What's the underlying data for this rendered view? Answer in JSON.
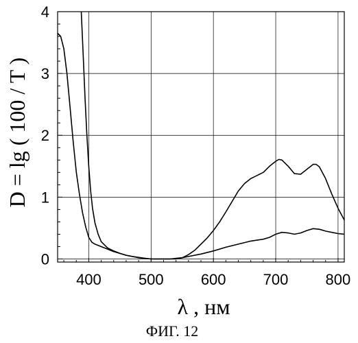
{
  "chart_data": {
    "type": "line",
    "xlabel": "λ , нм",
    "ylabel": "D = lg ( 100 / T )",
    "caption": "ФИГ. 12",
    "xlim": [
      350,
      810
    ],
    "ylim": [
      -0.05,
      4
    ],
    "xticks": [
      400,
      500,
      600,
      700,
      800
    ],
    "yticks": [
      0,
      1,
      2,
      3,
      4
    ],
    "grid": true,
    "series": [
      {
        "points": [
          [
            350,
            3.65
          ],
          [
            355,
            3.6
          ],
          [
            360,
            3.4
          ],
          [
            365,
            3.0
          ],
          [
            370,
            2.45
          ],
          [
            375,
            1.9
          ],
          [
            380,
            1.4
          ],
          [
            385,
            1.05
          ],
          [
            390,
            0.75
          ],
          [
            395,
            0.52
          ],
          [
            400,
            0.35
          ],
          [
            405,
            0.27
          ],
          [
            410,
            0.24
          ],
          [
            420,
            0.2
          ],
          [
            430,
            0.16
          ],
          [
            440,
            0.12
          ],
          [
            450,
            0.09
          ],
          [
            460,
            0.06
          ],
          [
            470,
            0.04
          ],
          [
            480,
            0.025
          ],
          [
            490,
            0.01
          ],
          [
            500,
            0.0
          ],
          [
            510,
            0.0
          ],
          [
            520,
            0.0
          ],
          [
            530,
            0.0
          ],
          [
            540,
            0.01
          ],
          [
            550,
            0.02
          ],
          [
            560,
            0.04
          ],
          [
            580,
            0.08
          ],
          [
            600,
            0.13
          ],
          [
            620,
            0.19
          ],
          [
            640,
            0.24
          ],
          [
            660,
            0.29
          ],
          [
            680,
            0.32
          ],
          [
            690,
            0.35
          ],
          [
            700,
            0.4
          ],
          [
            710,
            0.43
          ],
          [
            720,
            0.42
          ],
          [
            730,
            0.4
          ],
          [
            740,
            0.42
          ],
          [
            750,
            0.46
          ],
          [
            760,
            0.49
          ],
          [
            770,
            0.48
          ],
          [
            780,
            0.45
          ],
          [
            790,
            0.43
          ],
          [
            800,
            0.41
          ],
          [
            810,
            0.4
          ]
        ]
      },
      {
        "points": [
          [
            388,
            4.0
          ],
          [
            391,
            3.3
          ],
          [
            394,
            2.6
          ],
          [
            397,
            2.0
          ],
          [
            400,
            1.5
          ],
          [
            403,
            1.1
          ],
          [
            406,
            0.82
          ],
          [
            410,
            0.58
          ],
          [
            415,
            0.4
          ],
          [
            420,
            0.28
          ],
          [
            430,
            0.18
          ],
          [
            440,
            0.13
          ],
          [
            450,
            0.09
          ],
          [
            460,
            0.06
          ],
          [
            470,
            0.04
          ],
          [
            480,
            0.02
          ],
          [
            490,
            0.01
          ],
          [
            500,
            0.0
          ],
          [
            510,
            0.0
          ],
          [
            520,
            0.0
          ],
          [
            530,
            0.0
          ],
          [
            540,
            0.0
          ],
          [
            550,
            0.02
          ],
          [
            560,
            0.07
          ],
          [
            570,
            0.14
          ],
          [
            580,
            0.24
          ],
          [
            590,
            0.34
          ],
          [
            600,
            0.46
          ],
          [
            610,
            0.6
          ],
          [
            620,
            0.76
          ],
          [
            630,
            0.93
          ],
          [
            640,
            1.1
          ],
          [
            650,
            1.22
          ],
          [
            660,
            1.3
          ],
          [
            670,
            1.35
          ],
          [
            680,
            1.4
          ],
          [
            690,
            1.5
          ],
          [
            700,
            1.58
          ],
          [
            705,
            1.61
          ],
          [
            710,
            1.6
          ],
          [
            720,
            1.5
          ],
          [
            730,
            1.38
          ],
          [
            740,
            1.37
          ],
          [
            750,
            1.45
          ],
          [
            760,
            1.53
          ],
          [
            765,
            1.53
          ],
          [
            770,
            1.49
          ],
          [
            780,
            1.3
          ],
          [
            790,
            1.05
          ],
          [
            800,
            0.82
          ],
          [
            810,
            0.63
          ]
        ]
      }
    ]
  }
}
